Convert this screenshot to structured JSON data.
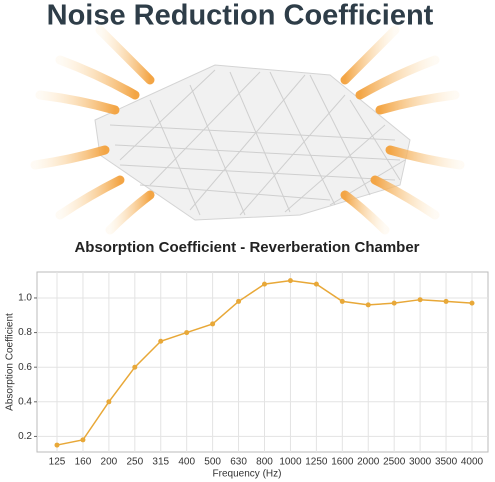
{
  "heading": "Noise Reduction Coefficient",
  "chart_data": {
    "type": "line",
    "title": "Absorption Coefficient - Reverberation Chamber",
    "x_label": "Frequency (Hz)",
    "y_label": "Absorption Coefficient",
    "categories": [
      "125",
      "160",
      "200",
      "250",
      "315",
      "400",
      "500",
      "630",
      "800",
      "1000",
      "1250",
      "1600",
      "2000",
      "2500",
      "3000",
      "3500",
      "4000"
    ],
    "values": [
      0.15,
      0.18,
      0.4,
      0.6,
      0.75,
      0.8,
      0.85,
      0.98,
      1.08,
      1.1,
      1.08,
      0.98,
      0.96,
      0.97,
      0.99,
      0.98,
      0.97
    ],
    "color": "#e8a838",
    "ylim": [
      0.11,
      1.15
    ],
    "yticks": [
      0.2,
      0.4,
      0.6,
      0.8,
      {
        "value": 1,
        "label": "1.0"
      }
    ],
    "grid": true
  }
}
